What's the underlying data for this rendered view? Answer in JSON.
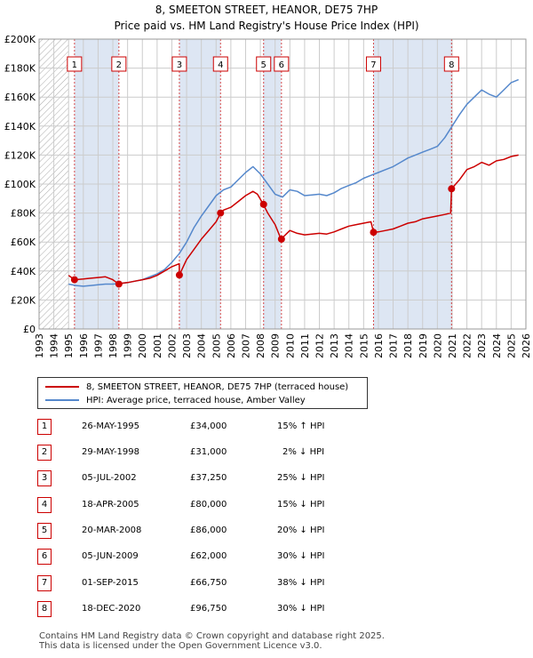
{
  "header": {
    "title": "8, SMEETON STREET, HEANOR, DE75 7HP",
    "subtitle": "Price paid vs. HM Land Registry's House Price Index (HPI)"
  },
  "colors": {
    "price_paid": "#cc0000",
    "hpi": "#5588cc",
    "band": "#dde6f3",
    "marker_box": "#cc0000"
  },
  "legend": {
    "price_paid": "8, SMEETON STREET, HEANOR, DE75 7HP (terraced house)",
    "hpi": "HPI: Average price, terraced house, Amber Valley"
  },
  "sales": [
    {
      "num": "1",
      "date": "26-MAY-1995",
      "price": "£34,000",
      "hpi": "15% ↑ HPI"
    },
    {
      "num": "2",
      "date": "29-MAY-1998",
      "price": "£31,000",
      "hpi": "2% ↓ HPI"
    },
    {
      "num": "3",
      "date": "05-JUL-2002",
      "price": "£37,250",
      "hpi": "25% ↓ HPI"
    },
    {
      "num": "4",
      "date": "18-APR-2005",
      "price": "£80,000",
      "hpi": "15% ↓ HPI"
    },
    {
      "num": "5",
      "date": "20-MAR-2008",
      "price": "£86,000",
      "hpi": "20% ↓ HPI"
    },
    {
      "num": "6",
      "date": "05-JUN-2009",
      "price": "£62,000",
      "hpi": "30% ↓ HPI"
    },
    {
      "num": "7",
      "date": "01-SEP-2015",
      "price": "£66,750",
      "hpi": "38% ↓ HPI"
    },
    {
      "num": "8",
      "date": "18-DEC-2020",
      "price": "£96,750",
      "hpi": "30% ↓ HPI"
    }
  ],
  "footer": {
    "line1": "Contains HM Land Registry data © Crown copyright and database right 2025.",
    "line2": "This data is licensed under the Open Government Licence v3.0."
  },
  "chart_data": {
    "type": "line",
    "title": "8, SMEETON STREET, HEANOR, DE75 7HP",
    "subtitle": "Price paid vs. HM Land Registry's House Price Index (HPI)",
    "xlim": [
      1993,
      2026
    ],
    "ylim": [
      0,
      200000
    ],
    "grid": true,
    "y_ticks": [
      0,
      20000,
      40000,
      60000,
      80000,
      100000,
      120000,
      140000,
      160000,
      180000,
      200000
    ],
    "y_tick_labels": [
      "£0",
      "£20K",
      "£40K",
      "£60K",
      "£80K",
      "£100K",
      "£120K",
      "£140K",
      "£160K",
      "£180K",
      "£200K"
    ],
    "x_ticks": [
      1993,
      1994,
      1995,
      1996,
      1997,
      1998,
      1999,
      2000,
      2001,
      2002,
      2003,
      2004,
      2005,
      2006,
      2007,
      2008,
      2009,
      2010,
      2011,
      2012,
      2013,
      2014,
      2015,
      2016,
      2017,
      2018,
      2019,
      2020,
      2021,
      2022,
      2023,
      2024,
      2025,
      2026
    ],
    "x_tick_labels": [
      "1993",
      "1994",
      "1995",
      "1996",
      "1997",
      "1998",
      "1999",
      "2000",
      "2001",
      "2002",
      "2003",
      "2004",
      "2005",
      "2006",
      "2007",
      "2008",
      "2009",
      "2010",
      "2011",
      "2012",
      "2013",
      "2014",
      "2015",
      "2016",
      "2017",
      "2018",
      "2019",
      "2020",
      "2021",
      "2022",
      "2023",
      "2024",
      "2025",
      "2026"
    ],
    "hatched_before": 1995.0,
    "highlight_bands": [
      [
        1995.4,
        1998.4
      ],
      [
        2002.5,
        2005.3
      ],
      [
        2008.2,
        2009.4
      ],
      [
        2015.67,
        2020.96
      ]
    ],
    "series": [
      {
        "name": "8, SMEETON STREET, HEANOR, DE75 7HP (terraced house)",
        "color": "#cc0000",
        "x": [
          1995.0,
          1995.4,
          1996.0,
          1996.5,
          1997.0,
          1997.5,
          1998.0,
          1998.4,
          1998.5,
          1999.0,
          1999.5,
          2000.0,
          2000.5,
          2001.0,
          2001.5,
          2002.0,
          2002.5,
          2002.51,
          2003.0,
          2003.5,
          2004.0,
          2004.5,
          2005.0,
          2005.3,
          2005.5,
          2006.0,
          2006.5,
          2007.0,
          2007.5,
          2007.8,
          2008.2,
          2008.5,
          2009.0,
          2009.4,
          2009.6,
          2010.0,
          2010.5,
          2011.0,
          2011.5,
          2012.0,
          2012.5,
          2013.0,
          2013.5,
          2014.0,
          2014.5,
          2015.0,
          2015.5,
          2015.67,
          2016.0,
          2016.5,
          2017.0,
          2017.5,
          2018.0,
          2018.5,
          2019.0,
          2019.5,
          2020.0,
          2020.5,
          2020.9,
          2020.96,
          2021.5,
          2022.0,
          2022.5,
          2023.0,
          2023.5,
          2024.0,
          2024.5,
          2025.0,
          2025.5
        ],
        "y": [
          37000,
          34000,
          34500,
          35000,
          35500,
          36000,
          34000,
          31000,
          31500,
          32000,
          33000,
          34000,
          35000,
          37000,
          40000,
          43000,
          45000,
          37250,
          48000,
          55000,
          62000,
          68000,
          74000,
          80000,
          82000,
          84000,
          88000,
          92000,
          95000,
          93000,
          86000,
          80000,
          72000,
          62000,
          64000,
          68000,
          66000,
          65000,
          65500,
          66000,
          65500,
          67000,
          69000,
          71000,
          72000,
          73000,
          74000,
          66750,
          67000,
          68000,
          69000,
          71000,
          73000,
          74000,
          76000,
          77000,
          78000,
          79000,
          80000,
          96750,
          103000,
          110000,
          112000,
          115000,
          113000,
          116000,
          117000,
          119000,
          120000
        ]
      },
      {
        "name": "HPI: Average price, terraced house, Amber Valley",
        "color": "#5588cc",
        "x": [
          1995.0,
          1995.5,
          1996.0,
          1996.5,
          1997.0,
          1997.5,
          1998.0,
          1998.5,
          1999.0,
          1999.5,
          2000.0,
          2000.5,
          2001.0,
          2001.5,
          2002.0,
          2002.5,
          2003.0,
          2003.5,
          2004.0,
          2004.5,
          2005.0,
          2005.5,
          2006.0,
          2006.5,
          2007.0,
          2007.5,
          2008.0,
          2008.5,
          2009.0,
          2009.5,
          2010.0,
          2010.5,
          2011.0,
          2011.5,
          2012.0,
          2012.5,
          2013.0,
          2013.5,
          2014.0,
          2014.5,
          2015.0,
          2015.5,
          2016.0,
          2016.5,
          2017.0,
          2017.5,
          2018.0,
          2018.5,
          2019.0,
          2019.5,
          2020.0,
          2020.5,
          2021.0,
          2021.5,
          2022.0,
          2022.5,
          2023.0,
          2023.5,
          2024.0,
          2024.5,
          2025.0,
          2025.5
        ],
        "y": [
          31000,
          30000,
          29500,
          30000,
          30500,
          31000,
          31000,
          31500,
          32000,
          33000,
          34000,
          36000,
          38000,
          41000,
          46000,
          52000,
          60000,
          70000,
          78000,
          85000,
          92000,
          96000,
          98000,
          103000,
          108000,
          112000,
          107000,
          100000,
          93000,
          91000,
          96000,
          95000,
          92000,
          92500,
          93000,
          92000,
          94000,
          97000,
          99000,
          101000,
          104000,
          106000,
          108000,
          110000,
          112000,
          115000,
          118000,
          120000,
          122000,
          124000,
          126000,
          132000,
          140000,
          148000,
          155000,
          160000,
          165000,
          162000,
          160000,
          165000,
          170000,
          172000
        ]
      }
    ],
    "sale_markers": [
      {
        "label": "1",
        "x": 1995.4,
        "y": 34000
      },
      {
        "label": "2",
        "x": 1998.41,
        "y": 31000
      },
      {
        "label": "3",
        "x": 2002.51,
        "y": 37250
      },
      {
        "label": "4",
        "x": 2005.3,
        "y": 80000
      },
      {
        "label": "5",
        "x": 2008.22,
        "y": 86000
      },
      {
        "label": "6",
        "x": 2009.43,
        "y": 62000
      },
      {
        "label": "7",
        "x": 2015.67,
        "y": 66750
      },
      {
        "label": "8",
        "x": 2020.96,
        "y": 96750
      }
    ]
  }
}
